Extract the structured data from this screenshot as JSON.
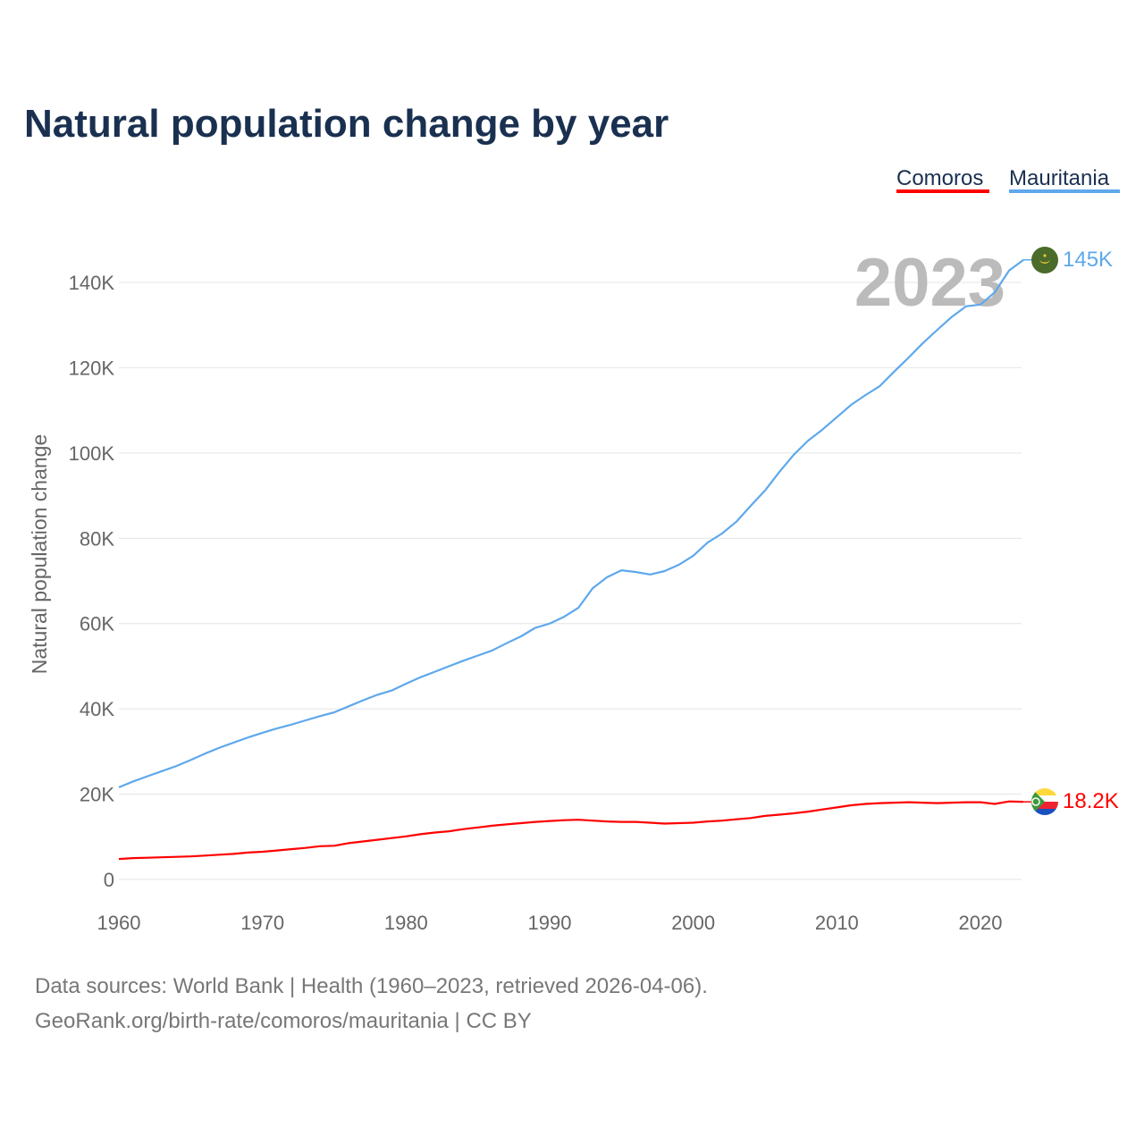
{
  "chart_data": {
    "type": "line",
    "title": "Natural population change by year",
    "xlabel": "",
    "ylabel": "Natural population change",
    "xlim": [
      1960,
      2023
    ],
    "ylim": [
      0,
      140000
    ],
    "yticks": [
      {
        "v": 0,
        "label": "0"
      },
      {
        "v": 20000,
        "label": "20K"
      },
      {
        "v": 40000,
        "label": "40K"
      },
      {
        "v": 60000,
        "label": "60K"
      },
      {
        "v": 80000,
        "label": "80K"
      },
      {
        "v": 100000,
        "label": "100K"
      },
      {
        "v": 120000,
        "label": "120K"
      },
      {
        "v": 140000,
        "label": "140K"
      }
    ],
    "xticks": [
      {
        "v": 1960,
        "label": "1960"
      },
      {
        "v": 1970,
        "label": "1970"
      },
      {
        "v": 1980,
        "label": "1980"
      },
      {
        "v": 1990,
        "label": "1990"
      },
      {
        "v": 2000,
        "label": "2000"
      },
      {
        "v": 2010,
        "label": "2010"
      },
      {
        "v": 2020,
        "label": "2020"
      }
    ],
    "grid": true,
    "legend_position": "top-right",
    "year_label": "2023",
    "x_start": 1960,
    "series": [
      {
        "name": "Comoros",
        "color": "#ff0000",
        "end_label": "18.2K",
        "flag": "comoros-flag-icon",
        "values": [
          4.8,
          5,
          5.1,
          5.2,
          5.3,
          5.4,
          5.6,
          5.8,
          6,
          6.3,
          6.5,
          6.8,
          7.1,
          7.4,
          7.8,
          7.9,
          8.5,
          8.9,
          9.3,
          9.7,
          10.1,
          10.6,
          11,
          11.3,
          11.8,
          12.2,
          12.6,
          12.9,
          13.2,
          13.5,
          13.7,
          13.9,
          14,
          13.8,
          13.6,
          13.5,
          13.5,
          13.3,
          13.1,
          13.2,
          13.3,
          13.6,
          13.8,
          14.1,
          14.4,
          14.9,
          15.2,
          15.5,
          15.9,
          16.4,
          16.9,
          17.4,
          17.7,
          17.9,
          18,
          18.1,
          18,
          17.9,
          18,
          18.1,
          18.1,
          17.7,
          18.3,
          18.2
        ]
      },
      {
        "name": "Mauritania",
        "color": "#5ea8ec",
        "end_label": "145K",
        "flag": "mauritania-flag-icon",
        "values": [
          21.6,
          23,
          24.2,
          25.4,
          26.6,
          28,
          29.5,
          30.9,
          32.1,
          33.3,
          34.4,
          35.4,
          36.3,
          37.3,
          38.3,
          39.2,
          40.6,
          42,
          43.3,
          44.3,
          45.9,
          47.4,
          48.7,
          50,
          51.3,
          52.5,
          53.7,
          55.4,
          57,
          59,
          60,
          61.6,
          63.7,
          68.3,
          70.9,
          72.5,
          72.1,
          71.5,
          72.3,
          73.8,
          75.9,
          79,
          81.1,
          83.9,
          87.6,
          91.2,
          95.6,
          99.6,
          102.9,
          105.5,
          108.4,
          111.3,
          113.6,
          115.7,
          119.1,
          122.4,
          125.8,
          128.9,
          131.9,
          134.4,
          134.8,
          137.7,
          142.8,
          145.3
        ]
      }
    ],
    "value_unit": "thousands"
  },
  "footer": {
    "line1": "Data sources: World Bank | Health (1960–2023, retrieved 2026-04-06).",
    "line2": "GeoRank.org/birth-rate/comoros/mauritania | CC BY"
  }
}
